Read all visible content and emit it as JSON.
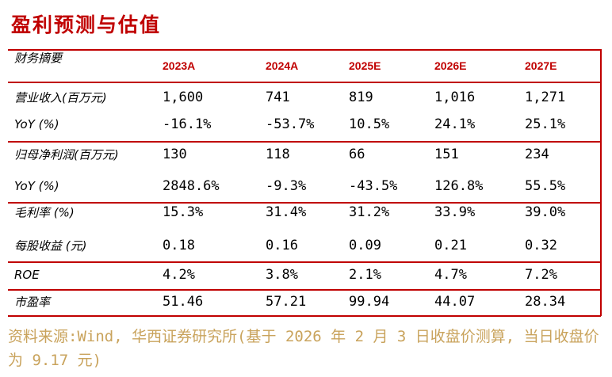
{
  "header": {
    "title": "盈利预测与估值"
  },
  "table": {
    "columns": [
      "财务摘要",
      "2023A",
      "2024A",
      "2025E",
      "2026E",
      "2027E"
    ],
    "rows": [
      [
        "营业收入(百万元)",
        "1,600",
        "741",
        "819",
        "1,016",
        "1,271"
      ],
      [
        "YoY (%)",
        "-16.1%",
        "-53.7%",
        "10.5%",
        "24.1%",
        "25.1%"
      ],
      [
        "归母净利润(百万元)",
        "130",
        "118",
        "66",
        "151",
        "234"
      ],
      [
        "YoY (%)",
        "2848.6%",
        "-9.3%",
        "-43.5%",
        "126.8%",
        "55.5%"
      ],
      [
        "毛利率 (%)",
        "15.3%",
        "31.4%",
        "31.2%",
        "33.9%",
        "39.0%"
      ],
      [
        "每股收益 (元)",
        "0.18",
        "0.16",
        "0.09",
        "0.21",
        "0.32"
      ],
      [
        "ROE",
        "4.2%",
        "3.8%",
        "2.1%",
        "4.7%",
        "7.2%"
      ],
      [
        "市盈率",
        "51.46",
        "57.21",
        "99.94",
        "44.07",
        "28.34"
      ]
    ]
  },
  "source": "资料来源:Wind, 华西证券研究所(基于 2026 年 2 月 3 日收盘价测算, 当日收盘价为 9.17 元)"
}
